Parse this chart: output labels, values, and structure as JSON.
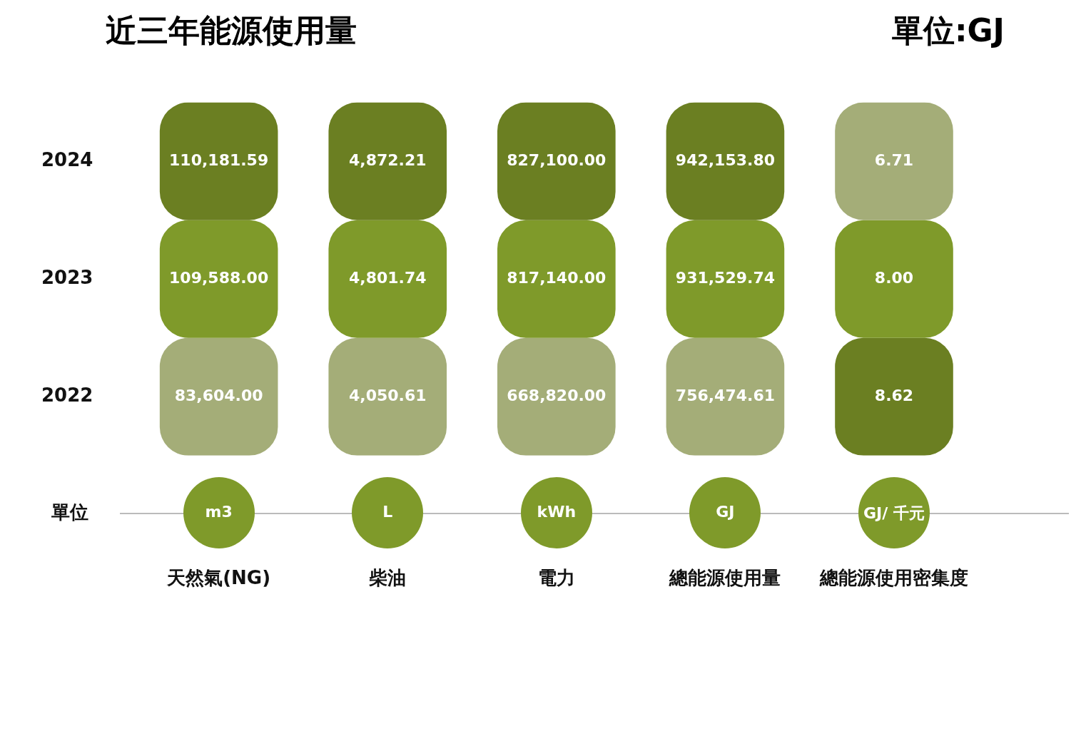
{
  "chart_data": {
    "type": "heatmap",
    "title": "近三年能源使用量",
    "subtitle": "單位:GJ",
    "categories": [
      "天然氣(NG)",
      "柴油",
      "電力",
      "總能源使用量",
      "總能源使用密集度"
    ],
    "y_categories": [
      "2024",
      "2023",
      "2022"
    ],
    "cells": [
      [
        110181.59,
        4872.21,
        827100,
        942153.8,
        6.71
      ],
      [
        109588,
        4801.74,
        817140,
        931529.74,
        8
      ],
      [
        83604,
        4050.61,
        668820,
        756474.61,
        8.62
      ]
    ],
    "cell_labels": [
      [
        "110,181.59",
        "4,872.21",
        "827,100.00",
        "942,153.80",
        "6.71"
      ],
      [
        "109,588.00",
        "4,801.74",
        "817,140.00",
        "931,529.74",
        "8.00"
      ],
      [
        "83,604.00",
        "4,050.61",
        "668,820.00",
        "756,474.61",
        "8.62"
      ]
    ],
    "colors": [
      "#6b7f22",
      "#7f9a2a",
      "#a4ad78"
    ],
    "data_labels": true,
    "annotations": [
      "單位",
      "m3",
      "L",
      "kWh",
      "GJ",
      "GJ/ 千元"
    ]
  }
}
